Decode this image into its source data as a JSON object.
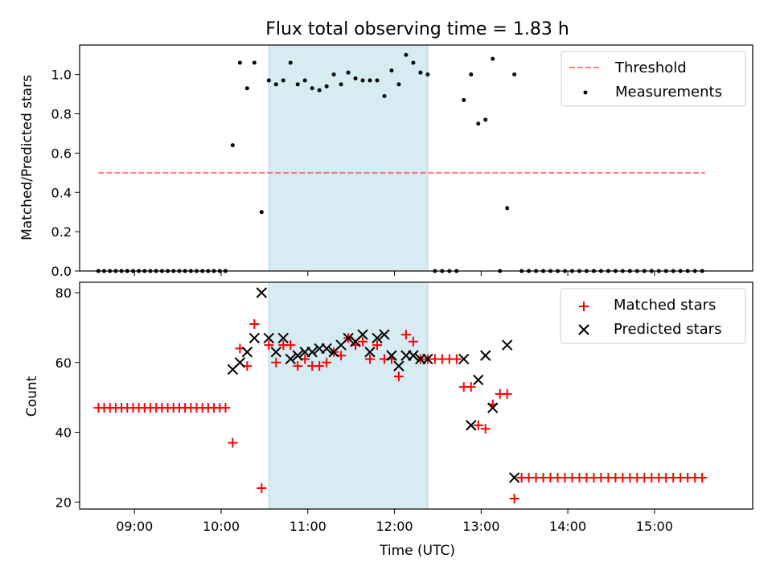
{
  "chart_data": [
    {
      "type": "scatter",
      "title": "Flux total observing time = 1.83 h",
      "xlabel": "",
      "ylabel": "Matched/Predicted stars",
      "xlim": [
        "08:22",
        "16:08"
      ],
      "ylim": [
        0,
        1.15
      ],
      "yticks": [
        0.0,
        0.2,
        0.4,
        0.6,
        0.8,
        1.0
      ],
      "ytick_labels": [
        "0.0",
        "0.2",
        "0.4",
        "0.6",
        "0.8",
        "1.0"
      ],
      "shaded_span": [
        "10:33",
        "12:23"
      ],
      "shade_color": "#add8e6",
      "legend": [
        "Threshold",
        "Measurements"
      ],
      "legend_position": "upper right",
      "threshold": {
        "name": "Threshold",
        "y": 0.5,
        "x_start": "08:35",
        "x_end": "15:35",
        "style": "dashed",
        "color": "#ff0000"
      },
      "series": [
        {
          "name": "Measurements",
          "marker": "point",
          "color": "#000000",
          "x": [
            "08:35",
            "08:39",
            "08:43",
            "08:47",
            "08:51",
            "08:55",
            "08:59",
            "09:03",
            "09:07",
            "09:11",
            "09:15",
            "09:19",
            "09:23",
            "09:27",
            "09:31",
            "09:35",
            "09:39",
            "09:43",
            "09:47",
            "09:51",
            "09:55",
            "09:59",
            "10:03",
            "10:08",
            "10:13",
            "10:18",
            "10:23",
            "10:28",
            "10:33",
            "10:38",
            "10:43",
            "10:48",
            "10:53",
            "10:58",
            "11:03",
            "11:08",
            "11:13",
            "11:18",
            "11:23",
            "11:28",
            "11:33",
            "11:38",
            "11:43",
            "11:48",
            "11:53",
            "11:58",
            "12:03",
            "12:08",
            "12:13",
            "12:18",
            "12:23",
            "12:28",
            "12:33",
            "12:38",
            "12:43",
            "12:48",
            "12:53",
            "12:58",
            "13:03",
            "13:08",
            "13:13",
            "13:18",
            "13:23",
            "13:28",
            "13:33",
            "13:38",
            "13:43",
            "13:48",
            "13:53",
            "13:58",
            "14:03",
            "14:08",
            "14:13",
            "14:18",
            "14:23",
            "14:28",
            "14:33",
            "14:38",
            "14:43",
            "14:48",
            "14:53",
            "14:58",
            "15:03",
            "15:08",
            "15:13",
            "15:18",
            "15:23",
            "15:28",
            "15:33"
          ],
          "y": [
            0,
            0,
            0,
            0,
            0,
            0,
            0,
            0,
            0,
            0,
            0,
            0,
            0,
            0,
            0,
            0,
            0,
            0,
            0,
            0,
            0,
            0,
            0,
            0.64,
            1.06,
            0.93,
            1.06,
            0.3,
            0.97,
            0.95,
            0.97,
            1.06,
            0.95,
            0.97,
            0.93,
            0.92,
            0.94,
            1.0,
            0.95,
            1.01,
            0.98,
            0.97,
            0.97,
            0.97,
            0.89,
            1.02,
            0.95,
            1.1,
            1.06,
            1.01,
            1.0,
            0,
            0,
            0,
            0,
            0.87,
            1.0,
            0.75,
            0.77,
            1.08,
            0,
            0.32,
            1.0,
            0,
            0,
            0,
            0,
            0,
            0,
            0,
            0,
            0,
            0,
            0,
            0,
            0,
            0,
            0,
            0,
            0,
            0,
            0,
            0,
            0,
            0,
            0,
            0,
            0,
            0
          ]
        }
      ]
    },
    {
      "type": "scatter",
      "title": "",
      "xlabel": "Time (UTC)",
      "ylabel": "Count",
      "xlim": [
        "08:22",
        "16:08"
      ],
      "ylim": [
        18,
        83
      ],
      "yticks": [
        20,
        40,
        60,
        80
      ],
      "ytick_labels": [
        "20",
        "40",
        "60",
        "80"
      ],
      "xticks": [
        "09:00",
        "10:00",
        "11:00",
        "12:00",
        "13:00",
        "14:00",
        "15:00"
      ],
      "xtick_labels": [
        "09:00",
        "10:00",
        "11:00",
        "12:00",
        "13:00",
        "14:00",
        "15:00"
      ],
      "shaded_span": [
        "10:33",
        "12:23"
      ],
      "shade_color": "#add8e6",
      "legend": [
        "Matched stars",
        "Predicted stars"
      ],
      "legend_position": "upper right",
      "series": [
        {
          "name": "Matched stars",
          "marker": "plus",
          "color": "#ff0000",
          "x": [
            "08:35",
            "08:39",
            "08:43",
            "08:47",
            "08:51",
            "08:55",
            "08:59",
            "09:03",
            "09:07",
            "09:11",
            "09:15",
            "09:19",
            "09:23",
            "09:27",
            "09:31",
            "09:35",
            "09:39",
            "09:43",
            "09:47",
            "09:51",
            "09:55",
            "09:59",
            "10:03",
            "10:08",
            "10:13",
            "10:18",
            "10:23",
            "10:28",
            "10:33",
            "10:38",
            "10:43",
            "10:48",
            "10:53",
            "10:58",
            "11:03",
            "11:08",
            "11:13",
            "11:18",
            "11:23",
            "11:28",
            "11:33",
            "11:38",
            "11:43",
            "11:48",
            "11:53",
            "11:58",
            "12:03",
            "12:08",
            "12:13",
            "12:18",
            "12:23",
            "12:28",
            "12:33",
            "12:38",
            "12:43",
            "12:48",
            "12:53",
            "12:58",
            "13:03",
            "13:08",
            "13:13",
            "13:18",
            "13:23",
            "13:28",
            "13:33",
            "13:38",
            "13:43",
            "13:48",
            "13:53",
            "13:58",
            "14:03",
            "14:08",
            "14:13",
            "14:18",
            "14:23",
            "14:28",
            "14:33",
            "14:38",
            "14:43",
            "14:48",
            "14:53",
            "14:58",
            "15:03",
            "15:08",
            "15:13",
            "15:18",
            "15:23",
            "15:28",
            "15:33"
          ],
          "y": [
            47,
            47,
            47,
            47,
            47,
            47,
            47,
            47,
            47,
            47,
            47,
            47,
            47,
            47,
            47,
            47,
            47,
            47,
            47,
            47,
            47,
            47,
            47,
            37,
            64,
            59,
            71,
            24,
            65,
            60,
            65,
            65,
            59,
            61,
            59,
            59,
            60,
            63,
            62,
            67,
            65,
            66,
            61,
            65,
            61,
            61,
            56,
            68,
            66,
            61,
            61,
            61,
            61,
            61,
            61,
            53,
            53,
            42,
            41,
            48,
            51,
            51,
            21,
            27,
            27,
            27,
            27,
            27,
            27,
            27,
            27,
            27,
            27,
            27,
            27,
            27,
            27,
            27,
            27,
            27,
            27,
            27,
            27,
            27,
            27,
            27,
            27,
            27,
            27
          ]
        },
        {
          "name": "Predicted stars",
          "marker": "x",
          "color": "#000000",
          "x": [
            "10:08",
            "10:13",
            "10:18",
            "10:23",
            "10:28",
            "10:33",
            "10:38",
            "10:43",
            "10:48",
            "10:53",
            "10:58",
            "11:03",
            "11:08",
            "11:13",
            "11:18",
            "11:23",
            "11:28",
            "11:33",
            "11:38",
            "11:43",
            "11:48",
            "11:53",
            "11:58",
            "12:03",
            "12:08",
            "12:13",
            "12:18",
            "12:23",
            "12:48",
            "12:53",
            "12:58",
            "13:03",
            "13:08",
            "13:18",
            "13:23"
          ],
          "y": [
            58,
            60,
            63,
            67,
            80,
            67,
            63,
            67,
            61,
            62,
            63,
            63,
            64,
            64,
            63,
            65,
            67,
            66,
            68,
            63,
            67,
            68,
            62,
            59,
            62,
            62,
            61,
            61,
            61,
            42,
            55,
            62,
            47,
            65,
            27
          ]
        }
      ]
    }
  ]
}
